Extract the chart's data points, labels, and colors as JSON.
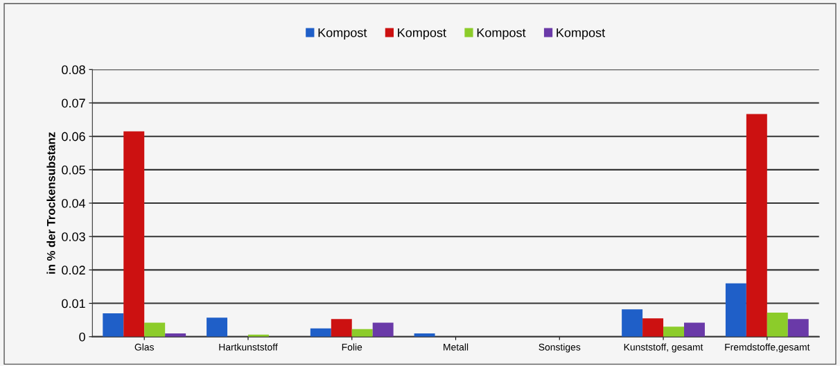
{
  "chart_data": {
    "type": "bar",
    "ylabel": "in % der Trockensubstanz",
    "categories": [
      "Glas",
      "Hartkunststoff",
      "Folie",
      "Metall",
      "Sonstiges",
      "Kunststoff, gesamt",
      "Fremdstoffe,gesamt"
    ],
    "series": [
      {
        "name": "Kompost",
        "color": "#1f5fc8",
        "values": [
          0.007,
          0.0057,
          0.0025,
          0.001,
          0,
          0.0082,
          0.016
        ]
      },
      {
        "name": "Kompost",
        "color": "#cc1111",
        "values": [
          0.0615,
          0,
          0.0053,
          0,
          0,
          0.0055,
          0.0667
        ]
      },
      {
        "name": "Kompost",
        "color": "#8ccc2a",
        "values": [
          0.0042,
          0.0006,
          0.0023,
          0,
          0,
          0.003,
          0.0072
        ]
      },
      {
        "name": "Kompost",
        "color": "#6a3aa8",
        "values": [
          0.001,
          0,
          0.0042,
          0,
          0,
          0.0042,
          0.0053
        ]
      }
    ],
    "ylim": [
      0,
      0.08
    ],
    "yticks": [
      0,
      0.01,
      0.02,
      0.03,
      0.04,
      0.05,
      0.06,
      0.07,
      0.08
    ],
    "grid": "y",
    "legend": "top"
  }
}
